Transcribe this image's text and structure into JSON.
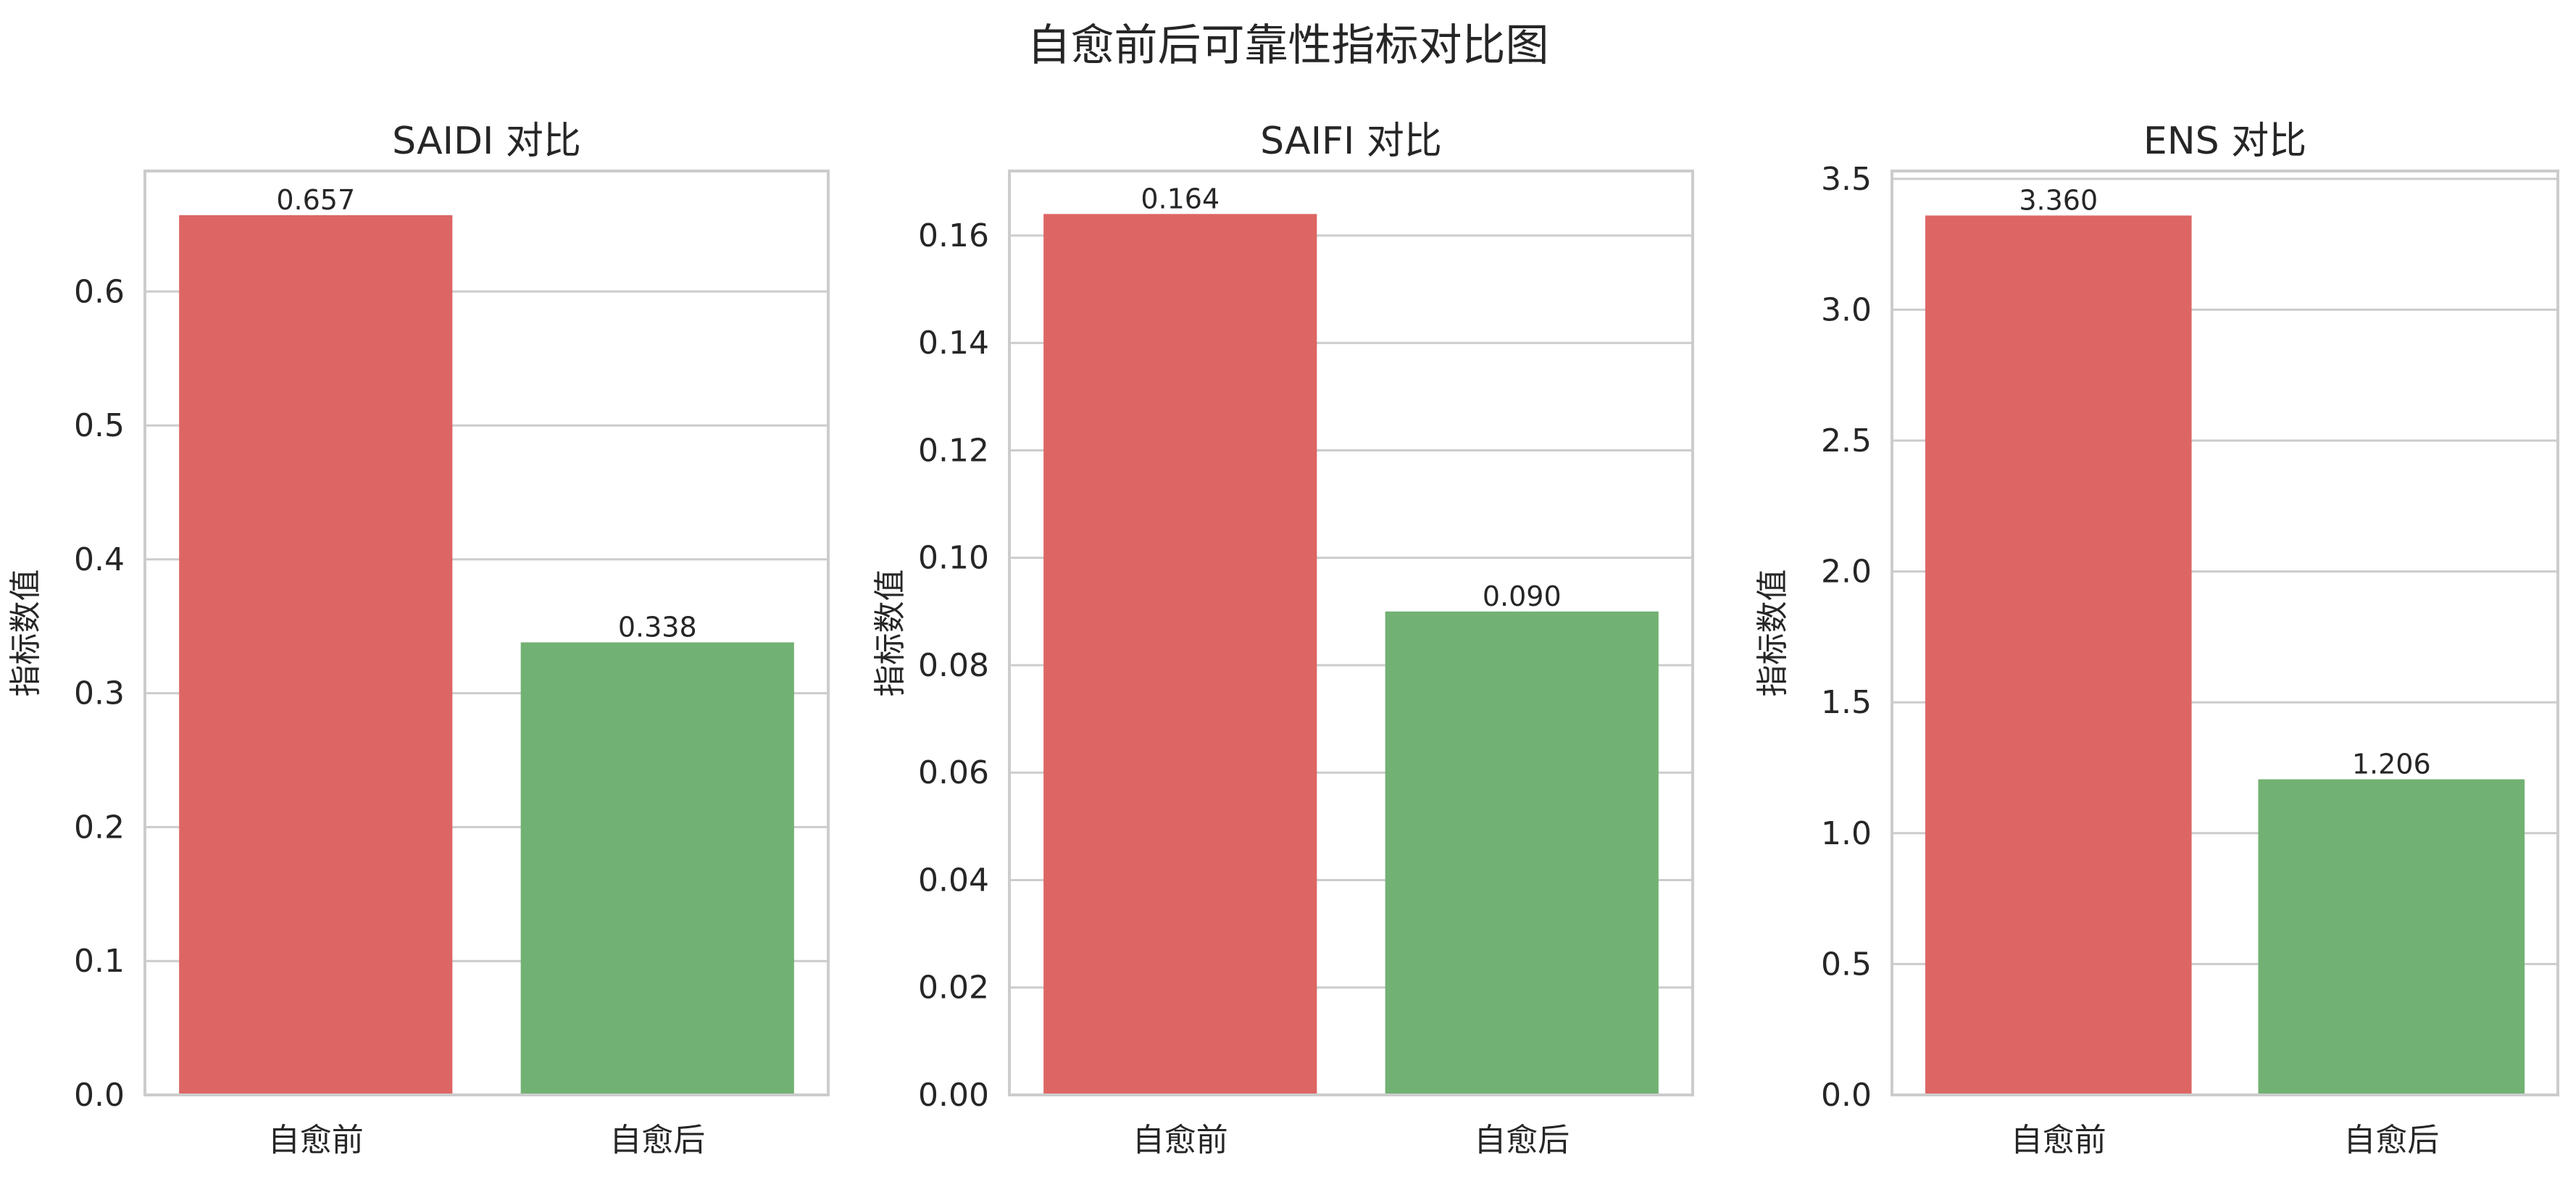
{
  "figure": {
    "title": "自愈前后可靠性指标对比图"
  },
  "colors": {
    "before": "#dd6665",
    "after": "#72b174",
    "grid": "#cccccc",
    "spine": "#cccccc",
    "text": "#262626"
  },
  "chart_data": [
    {
      "type": "bar",
      "title": "SAIDI 对比",
      "ylabel": "指标数值",
      "xlabel": "",
      "categories": [
        "自愈前",
        "自愈后"
      ],
      "values": [
        0.657,
        0.338
      ],
      "value_labels": [
        "0.657",
        "0.338"
      ],
      "ylim": [
        0,
        0.69
      ],
      "yticks": [
        0.0,
        0.1,
        0.2,
        0.3,
        0.4,
        0.5,
        0.6
      ],
      "ytick_labels": [
        "0.0",
        "0.1",
        "0.2",
        "0.3",
        "0.4",
        "0.5",
        "0.6"
      ],
      "grid": true
    },
    {
      "type": "bar",
      "title": "SAIFI 对比",
      "ylabel": "指标数值",
      "xlabel": "",
      "categories": [
        "自愈前",
        "自愈后"
      ],
      "values": [
        0.164,
        0.09
      ],
      "value_labels": [
        "0.164",
        "0.090"
      ],
      "ylim": [
        0,
        0.172
      ],
      "yticks": [
        0.0,
        0.02,
        0.04,
        0.06,
        0.08,
        0.1,
        0.12,
        0.14,
        0.16
      ],
      "ytick_labels": [
        "0.00",
        "0.02",
        "0.04",
        "0.06",
        "0.08",
        "0.10",
        "0.12",
        "0.14",
        "0.16"
      ],
      "grid": true
    },
    {
      "type": "bar",
      "title": "ENS 对比",
      "ylabel": "指标数值",
      "xlabel": "",
      "categories": [
        "自愈前",
        "自愈后"
      ],
      "values": [
        3.36,
        1.206
      ],
      "value_labels": [
        "3.360",
        "1.206"
      ],
      "ylim": [
        0,
        3.53
      ],
      "yticks": [
        0.0,
        0.5,
        1.0,
        1.5,
        2.0,
        2.5,
        3.0,
        3.5
      ],
      "ytick_labels": [
        "0.0",
        "0.5",
        "1.0",
        "1.5",
        "2.0",
        "2.5",
        "3.0",
        "3.5"
      ],
      "grid": true
    }
  ]
}
